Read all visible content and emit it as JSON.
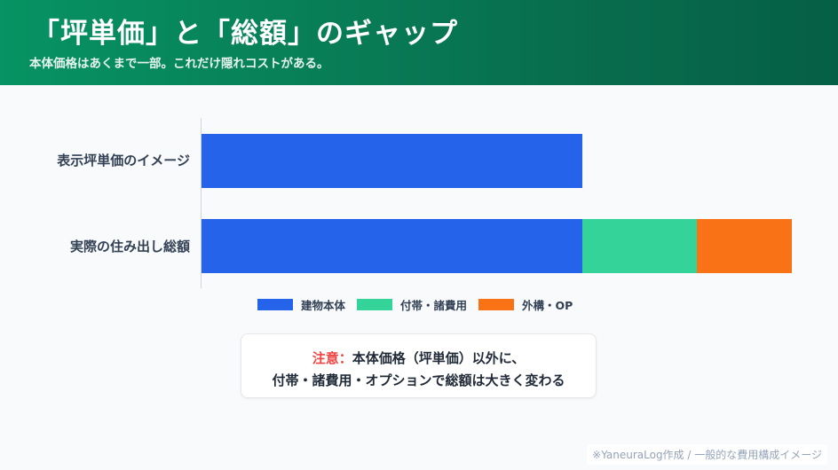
{
  "header": {
    "title": "「坪単価」と「総額」のギャップ",
    "subtitle": "本体価格はあくまで一部。これだけ隠れコストがある。"
  },
  "colors": {
    "header_start": "#079363",
    "header_end": "#065f45",
    "building": "#2563eb",
    "incidental": "#34d399",
    "exterior": "#f97316",
    "note_accent": "#ef4444"
  },
  "chart_data": {
    "type": "bar",
    "orientation": "horizontal",
    "stacked": true,
    "title": "",
    "xlabel": "",
    "ylabel": "",
    "categories": [
      "表示坪単価のイメージ",
      "実際の住み出し総額"
    ],
    "series": [
      {
        "name": "建物本体",
        "color": "#2563eb",
        "values": [
          100,
          100
        ]
      },
      {
        "name": "付帯・諸費用",
        "color": "#34d399",
        "values": [
          0,
          30
        ]
      },
      {
        "name": "外構・OP",
        "color": "#f97316",
        "values": [
          0,
          25
        ]
      }
    ],
    "xlim": [
      0,
      155
    ],
    "grid": false,
    "axis_ticks_visible": false,
    "legend_position": "bottom"
  },
  "chart": {
    "rows": [
      {
        "label": "表示坪単価のイメージ"
      },
      {
        "label": "実際の住み出し総額"
      }
    ],
    "legend": [
      {
        "label": "建物本体",
        "color": "#2563eb"
      },
      {
        "label": "付帯・諸費用",
        "color": "#34d399"
      },
      {
        "label": "外構・OP",
        "color": "#f97316"
      }
    ]
  },
  "note": {
    "prefix": "注意：",
    "line1": "本体価格（坪単価）以外に、",
    "line2": "付帯・諸費用・オプションで総額は大きく変わる"
  },
  "footer": {
    "credit": "※YaneuraLog作成 / 一般的な費用構成イメージ"
  }
}
